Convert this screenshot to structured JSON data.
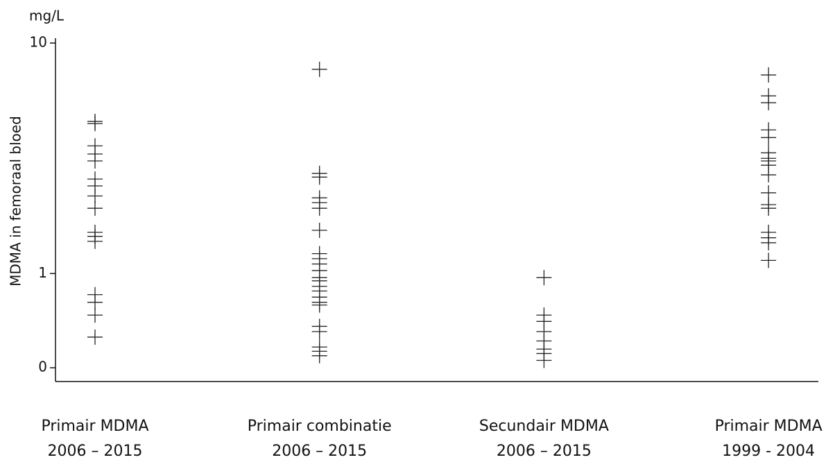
{
  "chart_data": {
    "type": "strip",
    "unit_label": "mg/L",
    "y_label": "MDMA in femoraal bloed",
    "log_y": true,
    "color": "#222222",
    "categories": [
      [
        "Primair MDMA",
        "2006 – 2015"
      ],
      [
        "Primair combinatie",
        "2006 – 2015"
      ],
      [
        "Secundair MDMA",
        "2006 – 2015"
      ],
      [
        "Primair MDMA",
        "1999 - 2004"
      ]
    ],
    "values": [
      [
        4.57,
        4.47,
        3.58,
        3.3,
        3.08,
        2.57,
        2.4,
        2.17,
        1.92,
        1.51,
        1.45,
        1.38,
        0.81,
        0.75,
        0.66,
        0.53
      ],
      [
        7.69,
        2.72,
        2.62,
        2.13,
        2.03,
        1.92,
        1.54,
        1.22,
        1.16,
        1.1,
        1.03,
        0.96,
        0.93,
        0.88,
        0.84,
        0.79,
        0.75,
        0.73,
        0.59,
        0.56,
        0.48,
        0.46,
        0.44
      ],
      [
        0.96,
        0.66,
        0.62,
        0.56,
        0.51,
        0.47,
        0.45,
        0.42
      ],
      [
        7.27,
        5.9,
        5.51,
        4.2,
        3.89,
        3.34,
        3.16,
        3.08,
        2.95,
        2.68,
        2.24,
        1.99,
        1.92,
        1.51,
        1.43,
        1.36,
        1.14
      ]
    ],
    "ylim": [
      0.34,
      10.5
    ],
    "yticks": [
      {
        "value": 0.39,
        "label": "0"
      },
      1,
      10
    ]
  }
}
